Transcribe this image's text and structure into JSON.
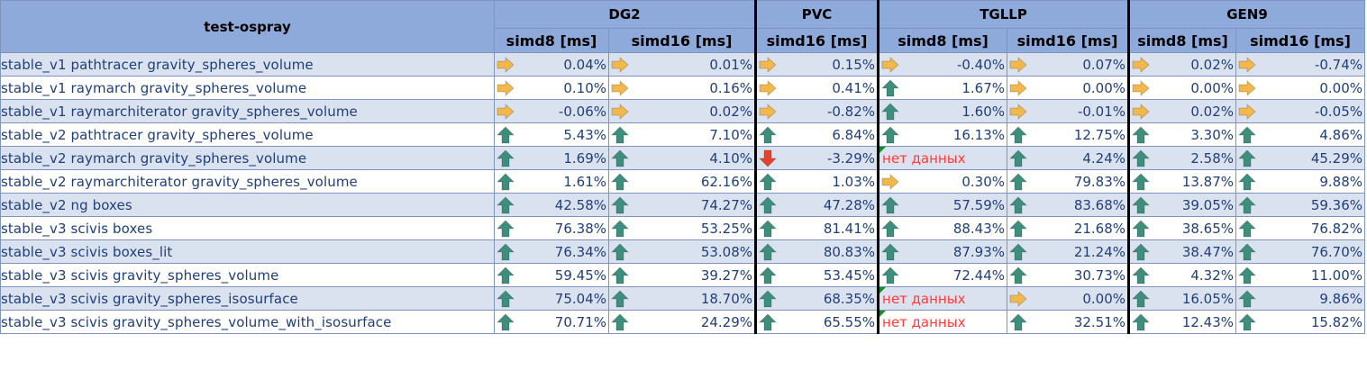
{
  "table": {
    "title": "test-ospray",
    "groups": [
      "DG2",
      "PVC",
      "TGLLP",
      "GEN9"
    ],
    "subheaders": [
      "simd8 [ms]",
      "simd16 [ms]",
      "simd16 [ms]",
      "simd8 [ms]",
      "simd16 [ms]",
      "simd8 [ms]",
      "simd16 [ms]"
    ],
    "icon_colors": {
      "up": "#3e8e7e",
      "flat": "#f2b84b",
      "down": "#e0452b"
    },
    "rows": [
      {
        "name": "stable_v1 pathtracer gravity_spheres_volume",
        "cells": [
          {
            "icon": "flat-arrow-icon",
            "value": "0.04%"
          },
          {
            "icon": "flat-arrow-icon",
            "value": "0.01%"
          },
          {
            "icon": "flat-arrow-icon",
            "value": "0.15%"
          },
          {
            "icon": "flat-arrow-icon",
            "value": "-0.40%"
          },
          {
            "icon": "flat-arrow-icon",
            "value": "0.07%"
          },
          {
            "icon": "flat-arrow-icon",
            "value": "0.02%"
          },
          {
            "icon": "flat-arrow-icon",
            "value": "-0.74%"
          }
        ]
      },
      {
        "name": "stable_v1 raymarch gravity_spheres_volume",
        "cells": [
          {
            "icon": "flat-arrow-icon",
            "value": "0.10%"
          },
          {
            "icon": "flat-arrow-icon",
            "value": "0.16%"
          },
          {
            "icon": "flat-arrow-icon",
            "value": "0.41%"
          },
          {
            "icon": "up-arrow-icon",
            "value": "1.67%"
          },
          {
            "icon": "flat-arrow-icon",
            "value": "0.00%"
          },
          {
            "icon": "flat-arrow-icon",
            "value": "0.00%"
          },
          {
            "icon": "flat-arrow-icon",
            "value": "0.00%"
          }
        ]
      },
      {
        "name": "stable_v1 raymarchiterator gravity_spheres_volume",
        "cells": [
          {
            "icon": "flat-arrow-icon",
            "value": "-0.06%"
          },
          {
            "icon": "flat-arrow-icon",
            "value": "0.02%"
          },
          {
            "icon": "flat-arrow-icon",
            "value": "-0.82%"
          },
          {
            "icon": "up-arrow-icon",
            "value": "1.60%"
          },
          {
            "icon": "flat-arrow-icon",
            "value": "-0.01%"
          },
          {
            "icon": "flat-arrow-icon",
            "value": "0.02%"
          },
          {
            "icon": "flat-arrow-icon",
            "value": "-0.05%"
          }
        ]
      },
      {
        "name": "stable_v2 pathtracer gravity_spheres_volume",
        "cells": [
          {
            "icon": "up-arrow-icon",
            "value": "5.43%"
          },
          {
            "icon": "up-arrow-icon",
            "value": "7.10%"
          },
          {
            "icon": "up-arrow-icon",
            "value": "6.84%"
          },
          {
            "icon": "up-arrow-icon",
            "value": "16.13%"
          },
          {
            "icon": "up-arrow-icon",
            "value": "12.75%"
          },
          {
            "icon": "up-arrow-icon",
            "value": "3.30%"
          },
          {
            "icon": "up-arrow-icon",
            "value": "4.86%"
          }
        ]
      },
      {
        "name": "stable_v2 raymarch gravity_spheres_volume",
        "cells": [
          {
            "icon": "up-arrow-icon",
            "value": "1.69%"
          },
          {
            "icon": "up-arrow-icon",
            "value": "4.10%"
          },
          {
            "icon": "down-arrow-icon",
            "value": "-3.29%"
          },
          {
            "nodata": true,
            "value": "нет данных"
          },
          {
            "icon": "up-arrow-icon",
            "value": "4.24%"
          },
          {
            "icon": "up-arrow-icon",
            "value": "2.58%"
          },
          {
            "icon": "up-arrow-icon",
            "value": "45.29%"
          }
        ]
      },
      {
        "name": "stable_v2 raymarchiterator gravity_spheres_volume",
        "cells": [
          {
            "icon": "up-arrow-icon",
            "value": "1.61%"
          },
          {
            "icon": "up-arrow-icon",
            "value": "62.16%"
          },
          {
            "icon": "up-arrow-icon",
            "value": "1.03%"
          },
          {
            "icon": "flat-arrow-icon",
            "value": "0.30%"
          },
          {
            "icon": "up-arrow-icon",
            "value": "79.83%"
          },
          {
            "icon": "up-arrow-icon",
            "value": "13.87%"
          },
          {
            "icon": "up-arrow-icon",
            "value": "9.88%"
          }
        ]
      },
      {
        "name": "stable_v2 ng boxes",
        "cells": [
          {
            "icon": "up-arrow-icon",
            "value": "42.58%"
          },
          {
            "icon": "up-arrow-icon",
            "value": "74.27%"
          },
          {
            "icon": "up-arrow-icon",
            "value": "47.28%"
          },
          {
            "icon": "up-arrow-icon",
            "value": "57.59%"
          },
          {
            "icon": "up-arrow-icon",
            "value": "83.68%"
          },
          {
            "icon": "up-arrow-icon",
            "value": "39.05%"
          },
          {
            "icon": "up-arrow-icon",
            "value": "59.36%"
          }
        ]
      },
      {
        "name": "stable_v3 scivis boxes",
        "cells": [
          {
            "icon": "up-arrow-icon",
            "value": "76.38%"
          },
          {
            "icon": "up-arrow-icon",
            "value": "53.25%"
          },
          {
            "icon": "up-arrow-icon",
            "value": "81.41%"
          },
          {
            "icon": "up-arrow-icon",
            "value": "88.43%"
          },
          {
            "icon": "up-arrow-icon",
            "value": "21.68%"
          },
          {
            "icon": "up-arrow-icon",
            "value": "38.65%"
          },
          {
            "icon": "up-arrow-icon",
            "value": "76.82%"
          }
        ]
      },
      {
        "name": " stable_v3 scivis boxes_lit",
        "cells": [
          {
            "icon": "up-arrow-icon",
            "value": "76.34%"
          },
          {
            "icon": "up-arrow-icon",
            "value": "53.08%"
          },
          {
            "icon": "up-arrow-icon",
            "value": "80.83%"
          },
          {
            "icon": "up-arrow-icon",
            "value": "87.93%"
          },
          {
            "icon": "up-arrow-icon",
            "value": "21.24%"
          },
          {
            "icon": "up-arrow-icon",
            "value": "38.47%"
          },
          {
            "icon": "up-arrow-icon",
            "value": "76.70%"
          }
        ]
      },
      {
        "name": "stable_v3 scivis gravity_spheres_volume",
        "cells": [
          {
            "icon": "up-arrow-icon",
            "value": "59.45%"
          },
          {
            "icon": "up-arrow-icon",
            "value": "39.27%"
          },
          {
            "icon": "up-arrow-icon",
            "value": "53.45%"
          },
          {
            "icon": "up-arrow-icon",
            "value": "72.44%"
          },
          {
            "icon": "up-arrow-icon",
            "value": "30.73%"
          },
          {
            "icon": "up-arrow-icon",
            "value": "4.32%"
          },
          {
            "icon": "up-arrow-icon",
            "value": "11.00%"
          }
        ]
      },
      {
        "name": "stable_v3 scivis gravity_spheres_isosurface",
        "cells": [
          {
            "icon": "up-arrow-icon",
            "value": "75.04%"
          },
          {
            "icon": "up-arrow-icon",
            "value": "18.70%"
          },
          {
            "icon": "up-arrow-icon",
            "value": "68.35%"
          },
          {
            "nodata": true,
            "value": "нет данных"
          },
          {
            "icon": "flat-arrow-icon",
            "value": "0.00%"
          },
          {
            "icon": "up-arrow-icon",
            "value": "16.05%"
          },
          {
            "icon": "up-arrow-icon",
            "value": "9.86%"
          }
        ]
      },
      {
        "name": "stable_v3 scivis gravity_spheres_volume_with_isosurface",
        "cells": [
          {
            "icon": "up-arrow-icon",
            "value": "70.71%"
          },
          {
            "icon": "up-arrow-icon",
            "value": "24.29%"
          },
          {
            "icon": "up-arrow-icon",
            "value": "65.55%"
          },
          {
            "nodata": true,
            "value": "нет данных"
          },
          {
            "icon": "up-arrow-icon",
            "value": "32.51%"
          },
          {
            "icon": "up-arrow-icon",
            "value": "12.43%"
          },
          {
            "icon": "up-arrow-icon",
            "value": "15.82%"
          }
        ]
      }
    ]
  }
}
